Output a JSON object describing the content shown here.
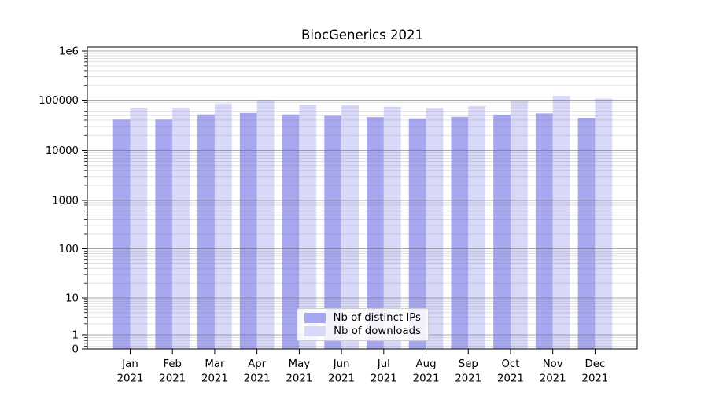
{
  "chart_data": {
    "type": "bar",
    "title": "BiocGenerics 2021",
    "categories": [
      "Jan",
      "Feb",
      "Mar",
      "Apr",
      "May",
      "Jun",
      "Jul",
      "Aug",
      "Sep",
      "Oct",
      "Nov",
      "Dec"
    ],
    "category_year_label": "2021",
    "series": [
      {
        "name": "Nb of distinct IPs",
        "color": "#a8a8f0",
        "values": [
          41000,
          41000,
          52000,
          55500,
          52000,
          50500,
          46000,
          43500,
          46500,
          51500,
          54500,
          44500
        ]
      },
      {
        "name": "Nb of downloads",
        "color": "#d8d8f8",
        "values": [
          70000,
          68000,
          86000,
          100000,
          82000,
          79000,
          74000,
          71000,
          76000,
          95000,
          122000,
          108000
        ]
      }
    ],
    "yscale": "symlog",
    "ylim": [
      0,
      1000000
    ],
    "ytick_labels": [
      "1e6",
      "100000",
      "10000",
      "1000",
      "100",
      "10",
      "1",
      "0"
    ],
    "ytick_values": [
      1000000,
      100000,
      10000,
      1000,
      100,
      10,
      1,
      0
    ],
    "grid": true,
    "legend_position": "lower center",
    "colors": {
      "major_grid": "#b0b0b0",
      "minor_grid": "#e0e0e0",
      "axis": "#000000",
      "background": "#ffffff"
    }
  }
}
